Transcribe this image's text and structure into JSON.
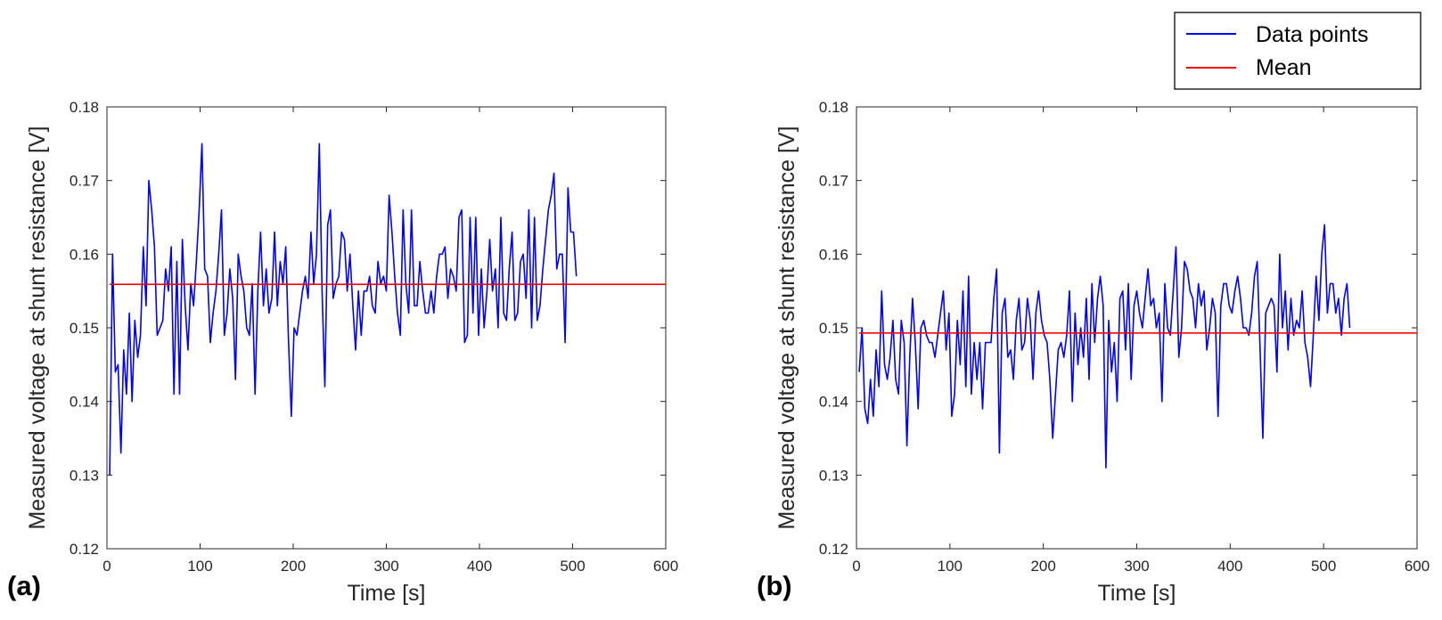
{
  "legend": {
    "entries": [
      {
        "label": "Data points",
        "color": "#0000ff"
      },
      {
        "label": "Mean",
        "color": "#ff0000"
      }
    ]
  },
  "chart_data": [
    {
      "type": "line",
      "panel_label": "(a)",
      "xlabel": "Time [s]",
      "ylabel": "Measured voltage at shunt resistance [V]",
      "xlim": [
        0,
        600
      ],
      "ylim": [
        0.12,
        0.18
      ],
      "xticks": [
        0,
        100,
        200,
        300,
        400,
        500,
        600
      ],
      "xtick_labels": [
        "0",
        "100",
        "200",
        "300",
        "400",
        "500",
        "600"
      ],
      "yticks": [
        0.12,
        0.13,
        0.14,
        0.15,
        0.16,
        0.17,
        0.18
      ],
      "ytick_labels": [
        "0.12",
        "0.13",
        "0.14",
        "0.15",
        "0.16",
        "0.17",
        "0.18"
      ],
      "x_step": 3,
      "x_start": 3,
      "series": [
        {
          "name": "Data points",
          "color": "#0000ff",
          "values": [
            0.13,
            0.16,
            0.144,
            0.145,
            0.133,
            0.147,
            0.141,
            0.152,
            0.14,
            0.151,
            0.146,
            0.149,
            0.161,
            0.153,
            0.17,
            0.166,
            0.161,
            0.149,
            0.15,
            0.151,
            0.158,
            0.155,
            0.161,
            0.141,
            0.159,
            0.141,
            0.162,
            0.153,
            0.147,
            0.156,
            0.153,
            0.159,
            0.166,
            0.175,
            0.158,
            0.157,
            0.148,
            0.152,
            0.155,
            0.16,
            0.166,
            0.149,
            0.152,
            0.158,
            0.154,
            0.143,
            0.16,
            0.157,
            0.155,
            0.15,
            0.149,
            0.156,
            0.141,
            0.155,
            0.163,
            0.153,
            0.158,
            0.152,
            0.154,
            0.163,
            0.153,
            0.159,
            0.156,
            0.161,
            0.148,
            0.138,
            0.15,
            0.149,
            0.152,
            0.155,
            0.157,
            0.154,
            0.163,
            0.156,
            0.16,
            0.175,
            0.155,
            0.142,
            0.164,
            0.166,
            0.154,
            0.156,
            0.157,
            0.163,
            0.162,
            0.155,
            0.16,
            0.153,
            0.147,
            0.155,
            0.149,
            0.155,
            0.155,
            0.157,
            0.153,
            0.152,
            0.159,
            0.156,
            0.157,
            0.155,
            0.168,
            0.163,
            0.157,
            0.152,
            0.149,
            0.166,
            0.156,
            0.152,
            0.166,
            0.153,
            0.153,
            0.159,
            0.155,
            0.152,
            0.152,
            0.155,
            0.152,
            0.157,
            0.16,
            0.16,
            0.161,
            0.154,
            0.158,
            0.157,
            0.155,
            0.165,
            0.166,
            0.148,
            0.149,
            0.165,
            0.152,
            0.165,
            0.149,
            0.158,
            0.15,
            0.155,
            0.162,
            0.155,
            0.158,
            0.15,
            0.165,
            0.152,
            0.151,
            0.158,
            0.163,
            0.151,
            0.152,
            0.159,
            0.16,
            0.154,
            0.166,
            0.15,
            0.165,
            0.151,
            0.153,
            0.158,
            0.162,
            0.166,
            0.168,
            0.171,
            0.158,
            0.16,
            0.16,
            0.148,
            0.169,
            0.163,
            0.163,
            0.157
          ]
        },
        {
          "name": "Mean",
          "color": "#ff0000",
          "values": [
            0.1559,
            0.1559
          ],
          "x": [
            3,
            600
          ]
        }
      ]
    },
    {
      "type": "line",
      "panel_label": "(b)",
      "xlabel": "Time [s]",
      "ylabel": "Measured voltage at shunt resistance [V]",
      "xlim": [
        0,
        600
      ],
      "ylim": [
        0.12,
        0.18
      ],
      "xticks": [
        0,
        100,
        200,
        300,
        400,
        500,
        600
      ],
      "xtick_labels": [
        "0",
        "100",
        "200",
        "300",
        "400",
        "500",
        "600"
      ],
      "yticks": [
        0.12,
        0.13,
        0.14,
        0.15,
        0.16,
        0.17,
        0.18
      ],
      "ytick_labels": [
        "0.12",
        "0.13",
        "0.14",
        "0.15",
        "0.16",
        "0.17",
        "0.18"
      ],
      "x_step": 3,
      "x_start": 3,
      "series": [
        {
          "name": "Data points",
          "color": "#0000ff",
          "values": [
            0.144,
            0.15,
            0.139,
            0.137,
            0.143,
            0.138,
            0.147,
            0.142,
            0.155,
            0.145,
            0.143,
            0.146,
            0.151,
            0.143,
            0.141,
            0.151,
            0.148,
            0.134,
            0.146,
            0.154,
            0.148,
            0.139,
            0.15,
            0.151,
            0.149,
            0.148,
            0.148,
            0.146,
            0.149,
            0.152,
            0.155,
            0.147,
            0.152,
            0.138,
            0.141,
            0.151,
            0.145,
            0.155,
            0.142,
            0.157,
            0.141,
            0.148,
            0.143,
            0.148,
            0.139,
            0.148,
            0.148,
            0.148,
            0.154,
            0.158,
            0.133,
            0.152,
            0.154,
            0.146,
            0.147,
            0.143,
            0.151,
            0.154,
            0.147,
            0.148,
            0.154,
            0.151,
            0.143,
            0.152,
            0.155,
            0.151,
            0.149,
            0.148,
            0.143,
            0.135,
            0.141,
            0.147,
            0.148,
            0.146,
            0.149,
            0.155,
            0.14,
            0.152,
            0.145,
            0.15,
            0.146,
            0.154,
            0.143,
            0.156,
            0.148,
            0.154,
            0.157,
            0.153,
            0.131,
            0.151,
            0.144,
            0.148,
            0.14,
            0.154,
            0.155,
            0.147,
            0.156,
            0.143,
            0.153,
            0.155,
            0.152,
            0.15,
            0.154,
            0.158,
            0.153,
            0.154,
            0.15,
            0.152,
            0.14,
            0.156,
            0.15,
            0.149,
            0.155,
            0.161,
            0.146,
            0.15,
            0.159,
            0.158,
            0.155,
            0.154,
            0.15,
            0.156,
            0.153,
            0.155,
            0.147,
            0.15,
            0.154,
            0.152,
            0.138,
            0.153,
            0.156,
            0.156,
            0.153,
            0.152,
            0.155,
            0.157,
            0.154,
            0.15,
            0.15,
            0.149,
            0.152,
            0.157,
            0.159,
            0.147,
            0.135,
            0.152,
            0.153,
            0.154,
            0.153,
            0.144,
            0.16,
            0.15,
            0.155,
            0.147,
            0.154,
            0.149,
            0.151,
            0.15,
            0.155,
            0.148,
            0.146,
            0.142,
            0.149,
            0.157,
            0.151,
            0.16,
            0.164,
            0.152,
            0.156,
            0.156,
            0.152,
            0.154,
            0.149,
            0.154,
            0.156,
            0.15
          ]
        },
        {
          "name": "Mean",
          "color": "#ff0000",
          "values": [
            0.1493,
            0.1493
          ],
          "x": [
            3,
            600
          ]
        }
      ]
    }
  ]
}
